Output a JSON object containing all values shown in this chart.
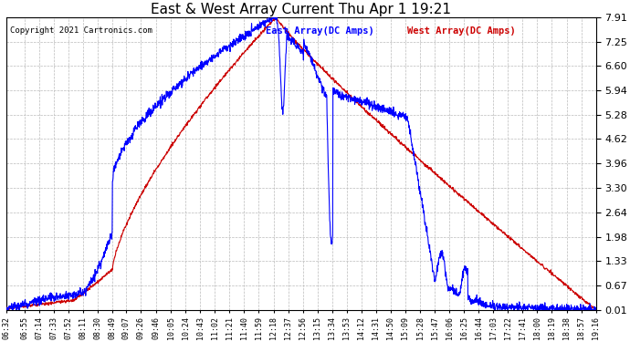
{
  "title": "East & West Array Current Thu Apr 1 19:21",
  "copyright": "Copyright 2021 Cartronics.com",
  "legend_east": "East Array(DC Amps)",
  "legend_west": "West Array(DC Amps)",
  "east_color": "#0000ff",
  "west_color": "#cc0000",
  "background_color": "#ffffff",
  "grid_color": "#bbbbbb",
  "ylim": [
    0.01,
    7.91
  ],
  "yticks": [
    0.01,
    0.67,
    1.33,
    1.98,
    2.64,
    3.3,
    3.96,
    4.62,
    5.28,
    5.94,
    6.6,
    7.25,
    7.91
  ],
  "xtick_labels": [
    "06:32",
    "06:55",
    "07:14",
    "07:33",
    "07:52",
    "08:11",
    "08:30",
    "08:49",
    "09:07",
    "09:26",
    "09:46",
    "10:05",
    "10:24",
    "10:43",
    "11:02",
    "11:21",
    "11:40",
    "11:59",
    "12:18",
    "12:37",
    "12:56",
    "13:15",
    "13:34",
    "13:53",
    "14:12",
    "14:31",
    "14:50",
    "15:09",
    "15:28",
    "15:47",
    "16:06",
    "16:25",
    "16:44",
    "17:03",
    "17:22",
    "17:41",
    "18:00",
    "18:19",
    "18:38",
    "18:57",
    "19:16"
  ]
}
